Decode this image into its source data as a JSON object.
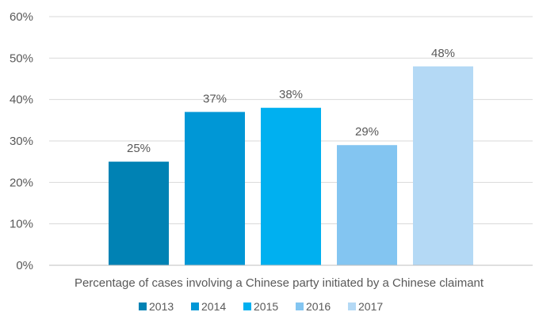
{
  "chart_data": {
    "type": "bar",
    "category_label": "Percentage of cases involving a Chinese party initiated by a Chinese claimant",
    "series": [
      {
        "name": "2013",
        "value": 25,
        "label": "25%",
        "color": "#0082b4"
      },
      {
        "name": "2014",
        "value": 37,
        "label": "37%",
        "color": "#0097d6"
      },
      {
        "name": "2015",
        "value": 38,
        "label": "38%",
        "color": "#00b0f0"
      },
      {
        "name": "2016",
        "value": 29,
        "label": "29%",
        "color": "#83c5f1"
      },
      {
        "name": "2017",
        "value": 48,
        "label": "48%",
        "color": "#b4d9f5"
      }
    ],
    "y_ticks": [
      "0%",
      "10%",
      "20%",
      "30%",
      "40%",
      "50%",
      "60%"
    ],
    "ylim": [
      0,
      60
    ],
    "grid": true,
    "legend": "bottom"
  }
}
